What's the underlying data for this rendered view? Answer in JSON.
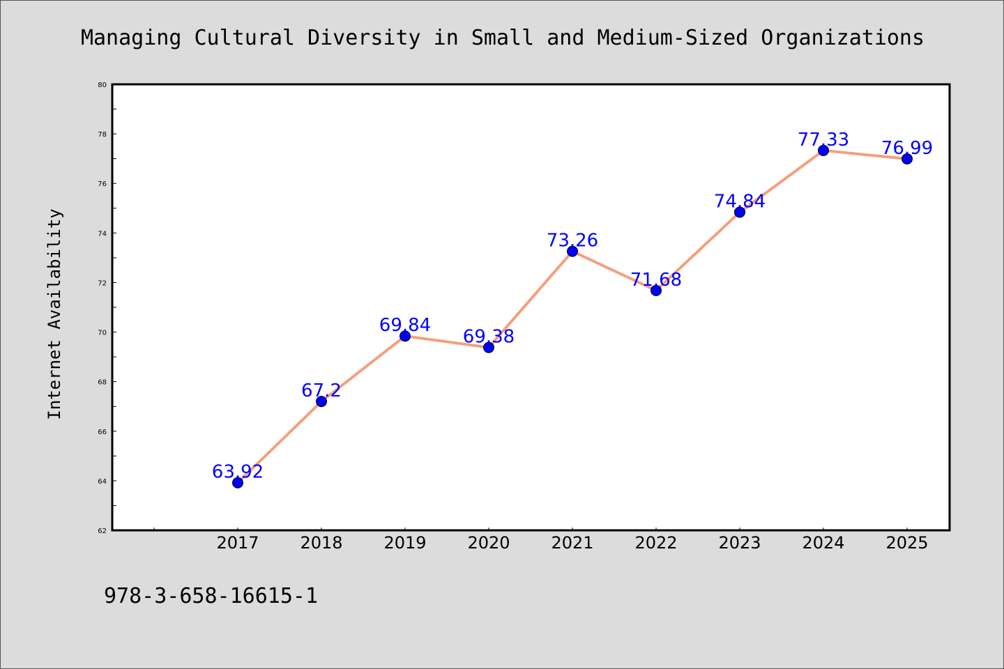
{
  "chart_data": {
    "type": "line",
    "title": "Managing Cultural Diversity in Small and Medium-Sized Organizations",
    "xlabel": "",
    "ylabel": "Internet Availability",
    "categories": [
      "2017",
      "2018",
      "2019",
      "2020",
      "2021",
      "2022",
      "2023",
      "2024",
      "2025"
    ],
    "series": [
      {
        "values": [
          63.92,
          67.2,
          69.84,
          69.38,
          73.26,
          71.68,
          74.84,
          77.33,
          76.99
        ]
      }
    ],
    "data_labels": [
      "63.92",
      "67.2",
      "69.84",
      "69.38",
      "73.26",
      "71.68",
      "74.84",
      "77.33",
      "76.99"
    ],
    "ylim": [
      62,
      80
    ],
    "yticks": [
      "62",
      "64",
      "66",
      "68",
      "70",
      "72",
      "74",
      "76",
      "78",
      "80"
    ],
    "grid": false,
    "legend": "none",
    "colors": {
      "line": "#f4a07c",
      "marker": "#0000ff",
      "label": "#0000ff",
      "background": "#dcdcdc",
      "plot_area": "#ffffff"
    }
  },
  "footer": {
    "isbn": "978-3-658-16615-1"
  }
}
